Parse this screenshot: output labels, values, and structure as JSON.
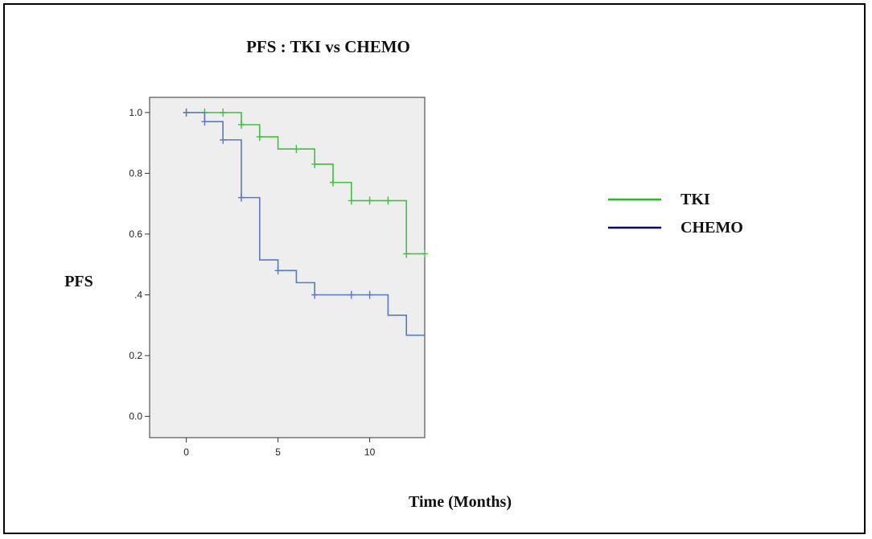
{
  "chart_data": {
    "type": "line",
    "subtype": "kaplan-meier-step",
    "title": "PFS : TKI vs CHEMO",
    "xlabel": "Time (Months)",
    "ylabel": "PFS",
    "xlim": [
      -2,
      13
    ],
    "ylim": [
      -0.07,
      1.05
    ],
    "x_ticks": [
      0,
      5,
      10
    ],
    "x_tick_labels": [
      "0",
      "5",
      "10"
    ],
    "y_ticks": [
      0.0,
      0.2,
      0.4,
      0.6,
      0.8,
      1.0
    ],
    "y_tick_labels": [
      "0.0",
      "0.2",
      ".4",
      "0.6",
      "0.8",
      "1.0"
    ],
    "grid": false,
    "plot_background": "#eeeeee",
    "legend_position": "right",
    "series": [
      {
        "name": "TKI",
        "color": "#40c040",
        "steps": [
          [
            0,
            1.0
          ],
          [
            3,
            0.96
          ],
          [
            4,
            0.92
          ],
          [
            5,
            0.88
          ],
          [
            7,
            0.83
          ],
          [
            8,
            0.77
          ],
          [
            9,
            0.71
          ],
          [
            12,
            0.535
          ],
          [
            13,
            0.535
          ]
        ],
        "censored": [
          [
            0,
            1.0
          ],
          [
            1,
            1.0
          ],
          [
            2,
            1.0
          ],
          [
            3,
            0.96
          ],
          [
            4,
            0.92
          ],
          [
            6,
            0.88
          ],
          [
            7,
            0.83
          ],
          [
            8,
            0.77
          ],
          [
            9,
            0.71
          ],
          [
            10,
            0.71
          ],
          [
            11,
            0.71
          ],
          [
            12,
            0.535
          ],
          [
            13,
            0.535
          ]
        ]
      },
      {
        "name": "CHEMO",
        "color": "#5a78c8",
        "steps": [
          [
            0,
            1.0
          ],
          [
            1,
            0.97
          ],
          [
            2,
            0.91
          ],
          [
            3,
            0.72
          ],
          [
            4,
            0.515
          ],
          [
            5,
            0.48
          ],
          [
            6,
            0.44
          ],
          [
            7,
            0.4
          ],
          [
            11,
            0.333
          ],
          [
            12,
            0.267
          ],
          [
            13,
            0.267
          ]
        ],
        "censored": [
          [
            0,
            1.0
          ],
          [
            1,
            0.97
          ],
          [
            2,
            0.91
          ],
          [
            3,
            0.72
          ],
          [
            5,
            0.48
          ],
          [
            7,
            0.4
          ],
          [
            9,
            0.4
          ],
          [
            10,
            0.4
          ]
        ]
      }
    ],
    "legend_colors": {
      "TKI": "#22bb22",
      "CHEMO": "#000066"
    }
  }
}
